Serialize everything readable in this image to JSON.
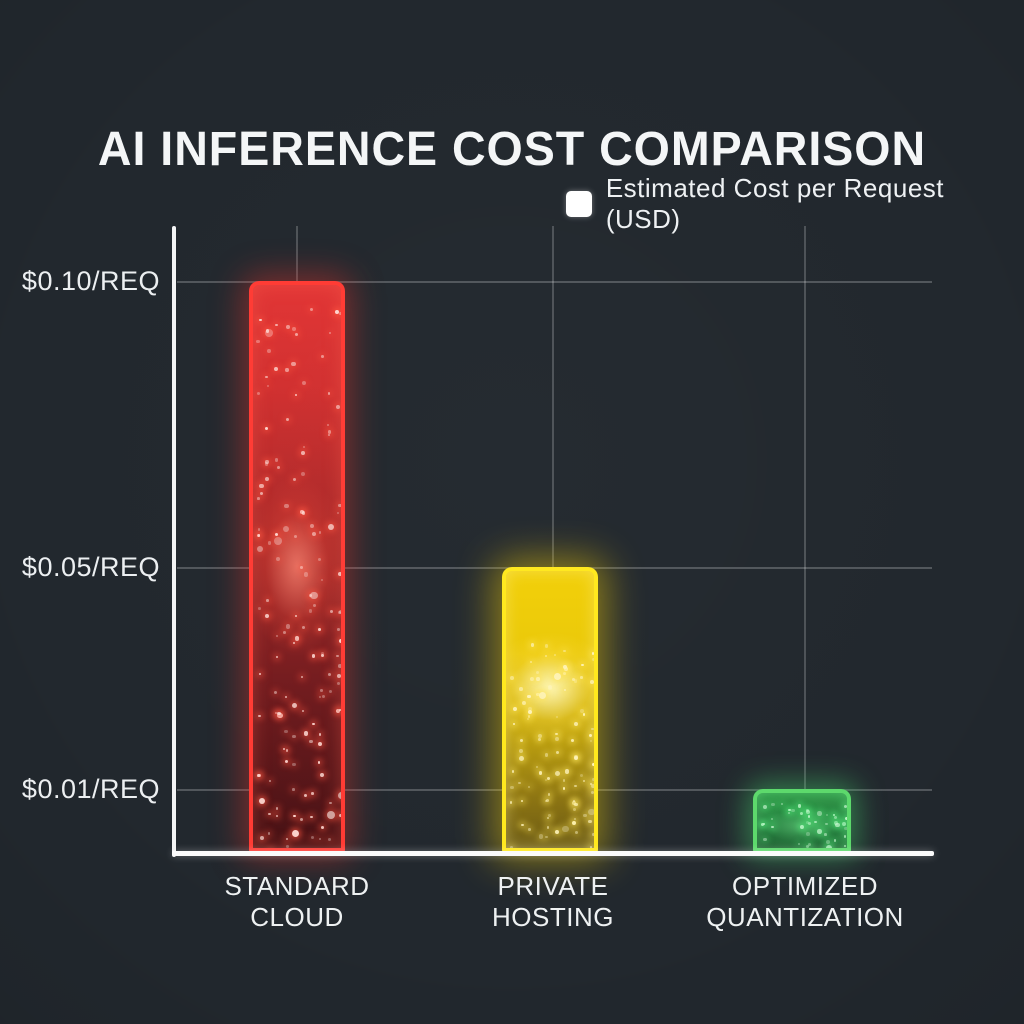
{
  "page": {
    "background": "#21272d"
  },
  "title": "AI INFERENCE COST COMPARISON",
  "legend": {
    "label": "Estimated Cost per Request (USD)",
    "swatch_color": "#ffffff"
  },
  "chart_data": {
    "type": "bar",
    "title": "AI INFERENCE COST COMPARISON",
    "legend_entries": [
      "Estimated Cost per Request (USD)"
    ],
    "legend_position": "top-right",
    "grid": true,
    "background": "#21272d",
    "categories": [
      "STANDARD CLOUD",
      "PRIVATE HOSTING",
      "OPTIMIZED QUANTIZATION"
    ],
    "values": [
      0.1,
      0.05,
      0.01
    ],
    "y_ticks": [
      {
        "value": 0.1,
        "label": "$0.10/REQ"
      },
      {
        "value": 0.05,
        "label": "$0.05/REQ"
      },
      {
        "value": 0.01,
        "label": "$0.01/REQ"
      }
    ],
    "bars": [
      {
        "category": "STANDARD CLOUD",
        "category_lines": [
          "STANDARD",
          "CLOUD"
        ],
        "value": 0.1,
        "color": "#e53935"
      },
      {
        "category": "PRIVATE HOSTING",
        "category_lines": [
          "PRIVATE",
          "HOSTING"
        ],
        "value": 0.05,
        "color": "#f2cf06"
      },
      {
        "category": "OPTIMIZED QUANTIZATION",
        "category_lines": [
          "OPTIMIZED",
          "QUANTIZATION"
        ],
        "value": 0.01,
        "color": "#3fae52"
      }
    ]
  }
}
